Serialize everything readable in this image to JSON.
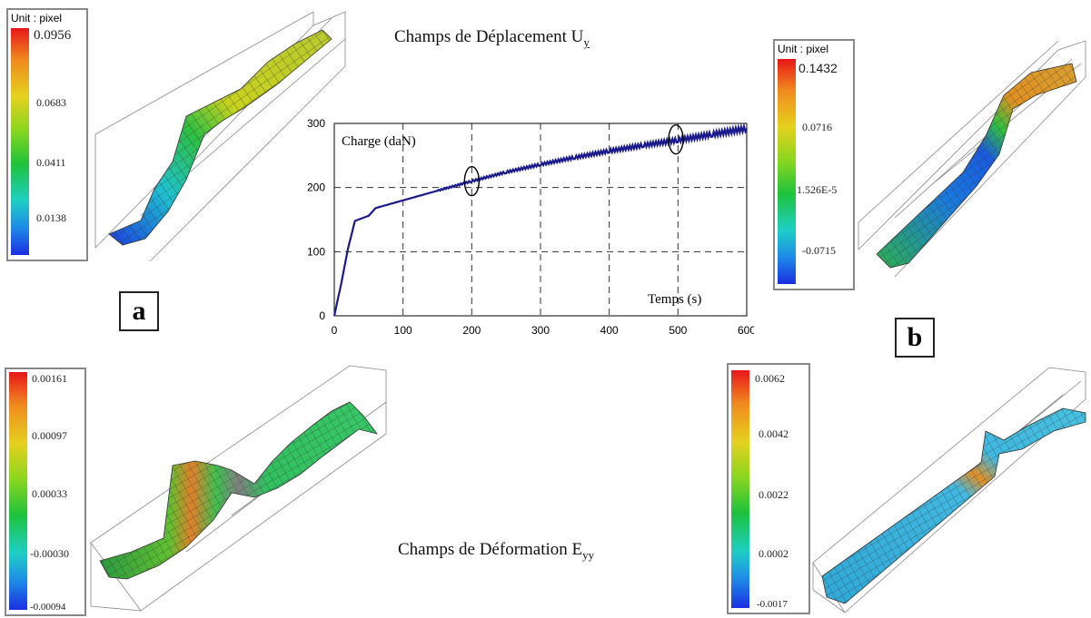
{
  "titles": {
    "displacement_prefix": "Champs de Déplacement U",
    "displacement_sub": "y",
    "strain_prefix": "Champs de Déformation E",
    "strain_sub": "yy"
  },
  "panel_letters": {
    "a": "a",
    "b": "b"
  },
  "colorbars": {
    "a": {
      "unit": "Unit : pixel",
      "labels": [
        "0.0956",
        "0.0683",
        "0.0411",
        "0.0138"
      ]
    },
    "b": {
      "unit": "Unit : pixel",
      "labels": [
        "0.1432",
        "0.0716",
        "1.526E-5",
        "-0.0715"
      ]
    },
    "c": {
      "labels": [
        "0.00161",
        "0.00097",
        "0.00033",
        "-0.00030",
        "-0.00094"
      ]
    },
    "d": {
      "labels": [
        "0.0062",
        "0.0042",
        "0.0022",
        "0.0002",
        "-0.0017"
      ]
    }
  },
  "colors": {
    "curve": "#1a1a8c",
    "grid": "#333333"
  },
  "chart_data": {
    "type": "line",
    "title": "",
    "ylabel": "Charge (daN)",
    "xlabel": "Temps (s)",
    "xlim": [
      0,
      600
    ],
    "ylim": [
      0,
      300
    ],
    "xticks": [
      0,
      100,
      200,
      300,
      400,
      500,
      600
    ],
    "yticks": [
      0,
      100,
      200,
      300
    ],
    "grid": true,
    "series": [
      {
        "x": [
          0,
          10,
          20,
          30,
          35,
          40,
          50,
          60,
          80,
          100,
          150,
          200,
          250,
          300,
          350,
          400,
          450,
          500,
          550,
          600
        ],
        "y": [
          0,
          50,
          105,
          148,
          150,
          152,
          156,
          168,
          174,
          180,
          195,
          210,
          224,
          236,
          247,
          257,
          266,
          274,
          283,
          292
        ]
      }
    ],
    "annotations": [
      {
        "type": "ellipse",
        "x": 200,
        "y": 210
      },
      {
        "type": "ellipse",
        "x": 497,
        "y": 275
      }
    ]
  }
}
